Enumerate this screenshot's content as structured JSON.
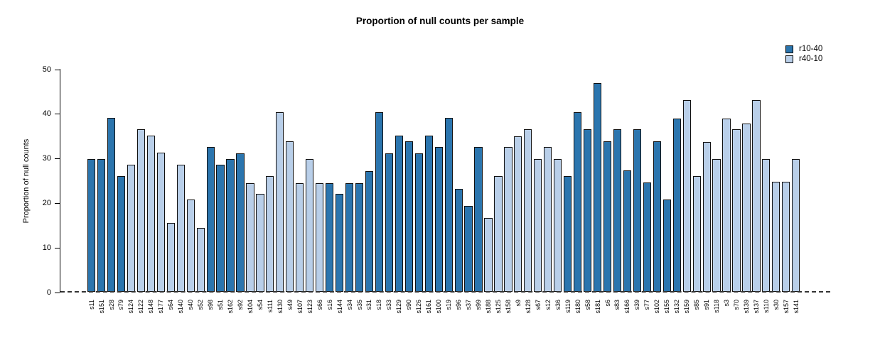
{
  "chart_data": {
    "type": "bar",
    "title": "Proportion of null counts per sample",
    "ylabel": "Proportion of null counts",
    "xlabel": "",
    "ylim": [
      0,
      50
    ],
    "yticks": [
      0,
      10,
      20,
      30,
      40,
      50
    ],
    "grid": false,
    "legend_position": "top-right",
    "zero_line_style": "dashed",
    "bar_border_color": "#111111",
    "axis_color": "#000000",
    "series": [
      {
        "name": "r10-40",
        "color": "#2b75ae"
      },
      {
        "name": "r40-10",
        "color": "#b9cfe9"
      }
    ],
    "bars": [
      {
        "label": "s11",
        "value": 29.8,
        "series": "r10-40"
      },
      {
        "label": "s151",
        "value": 29.8,
        "series": "r10-40"
      },
      {
        "label": "s28",
        "value": 39.1,
        "series": "r10-40"
      },
      {
        "label": "s79",
        "value": 26.0,
        "series": "r10-40"
      },
      {
        "label": "s124",
        "value": 28.6,
        "series": "r40-10"
      },
      {
        "label": "s122",
        "value": 36.5,
        "series": "r40-10"
      },
      {
        "label": "s148",
        "value": 35.1,
        "series": "r40-10"
      },
      {
        "label": "s177",
        "value": 31.3,
        "series": "r40-10"
      },
      {
        "label": "s64",
        "value": 15.6,
        "series": "r40-10"
      },
      {
        "label": "s140",
        "value": 28.6,
        "series": "r40-10"
      },
      {
        "label": "s40",
        "value": 20.8,
        "series": "r40-10"
      },
      {
        "label": "s52",
        "value": 14.4,
        "series": "r40-10"
      },
      {
        "label": "s98",
        "value": 32.5,
        "series": "r10-40"
      },
      {
        "label": "s51",
        "value": 28.6,
        "series": "r10-40"
      },
      {
        "label": "s162",
        "value": 29.8,
        "series": "r10-40"
      },
      {
        "label": "s92",
        "value": 31.2,
        "series": "r10-40"
      },
      {
        "label": "s104",
        "value": 24.5,
        "series": "r40-10"
      },
      {
        "label": "s54",
        "value": 22.0,
        "series": "r40-10"
      },
      {
        "label": "s111",
        "value": 26.0,
        "series": "r40-10"
      },
      {
        "label": "s130",
        "value": 40.3,
        "series": "r40-10"
      },
      {
        "label": "s49",
        "value": 33.9,
        "series": "r40-10"
      },
      {
        "label": "s107",
        "value": 24.5,
        "series": "r40-10"
      },
      {
        "label": "s123",
        "value": 29.8,
        "series": "r40-10"
      },
      {
        "label": "s66",
        "value": 24.5,
        "series": "r40-10"
      },
      {
        "label": "s16",
        "value": 24.5,
        "series": "r10-40"
      },
      {
        "label": "s144",
        "value": 22.0,
        "series": "r10-40"
      },
      {
        "label": "s34",
        "value": 24.5,
        "series": "r10-40"
      },
      {
        "label": "s35",
        "value": 24.5,
        "series": "r10-40"
      },
      {
        "label": "s31",
        "value": 27.2,
        "series": "r10-40"
      },
      {
        "label": "s18",
        "value": 40.3,
        "series": "r10-40"
      },
      {
        "label": "s33",
        "value": 31.2,
        "series": "r10-40"
      },
      {
        "label": "s129",
        "value": 35.1,
        "series": "r10-40"
      },
      {
        "label": "s90",
        "value": 33.9,
        "series": "r10-40"
      },
      {
        "label": "s126",
        "value": 31.2,
        "series": "r10-40"
      },
      {
        "label": "s161",
        "value": 35.1,
        "series": "r10-40"
      },
      {
        "label": "s100",
        "value": 32.5,
        "series": "r10-40"
      },
      {
        "label": "s19",
        "value": 39.1,
        "series": "r10-40"
      },
      {
        "label": "s96",
        "value": 23.2,
        "series": "r10-40"
      },
      {
        "label": "s37",
        "value": 19.4,
        "series": "r10-40"
      },
      {
        "label": "s99",
        "value": 32.5,
        "series": "r10-40"
      },
      {
        "label": "s188",
        "value": 16.7,
        "series": "r40-10"
      },
      {
        "label": "s125",
        "value": 26.0,
        "series": "r40-10"
      },
      {
        "label": "s158",
        "value": 32.5,
        "series": "r40-10"
      },
      {
        "label": "s9",
        "value": 35.0,
        "series": "r40-10"
      },
      {
        "label": "s128",
        "value": 36.5,
        "series": "r40-10"
      },
      {
        "label": "s67",
        "value": 29.8,
        "series": "r40-10"
      },
      {
        "label": "s12",
        "value": 32.5,
        "series": "r40-10"
      },
      {
        "label": "s36",
        "value": 29.8,
        "series": "r40-10"
      },
      {
        "label": "s119",
        "value": 26.0,
        "series": "r10-40"
      },
      {
        "label": "s180",
        "value": 40.3,
        "series": "r10-40"
      },
      {
        "label": "s58",
        "value": 36.5,
        "series": "r10-40"
      },
      {
        "label": "s181",
        "value": 46.9,
        "series": "r10-40"
      },
      {
        "label": "s6",
        "value": 33.9,
        "series": "r10-40"
      },
      {
        "label": "s83",
        "value": 36.5,
        "series": "r10-40"
      },
      {
        "label": "s166",
        "value": 27.3,
        "series": "r10-40"
      },
      {
        "label": "s39",
        "value": 36.5,
        "series": "r10-40"
      },
      {
        "label": "s77",
        "value": 24.6,
        "series": "r10-40"
      },
      {
        "label": "s102",
        "value": 33.9,
        "series": "r10-40"
      },
      {
        "label": "s155",
        "value": 20.8,
        "series": "r10-40"
      },
      {
        "label": "s132",
        "value": 39.0,
        "series": "r10-40"
      },
      {
        "label": "s159",
        "value": 43.1,
        "series": "r40-10"
      },
      {
        "label": "s85",
        "value": 26.0,
        "series": "r40-10"
      },
      {
        "label": "s91",
        "value": 33.7,
        "series": "r40-10"
      },
      {
        "label": "s118",
        "value": 29.8,
        "series": "r40-10"
      },
      {
        "label": "s3",
        "value": 39.0,
        "series": "r40-10"
      },
      {
        "label": "s70",
        "value": 36.5,
        "series": "r40-10"
      },
      {
        "label": "s139",
        "value": 37.8,
        "series": "r40-10"
      },
      {
        "label": "s137",
        "value": 43.1,
        "series": "r40-10"
      },
      {
        "label": "s110",
        "value": 29.8,
        "series": "r40-10"
      },
      {
        "label": "s30",
        "value": 24.7,
        "series": "r40-10"
      },
      {
        "label": "s157",
        "value": 24.7,
        "series": "r40-10"
      },
      {
        "label": "s141",
        "value": 29.8,
        "series": "r40-10"
      }
    ]
  }
}
